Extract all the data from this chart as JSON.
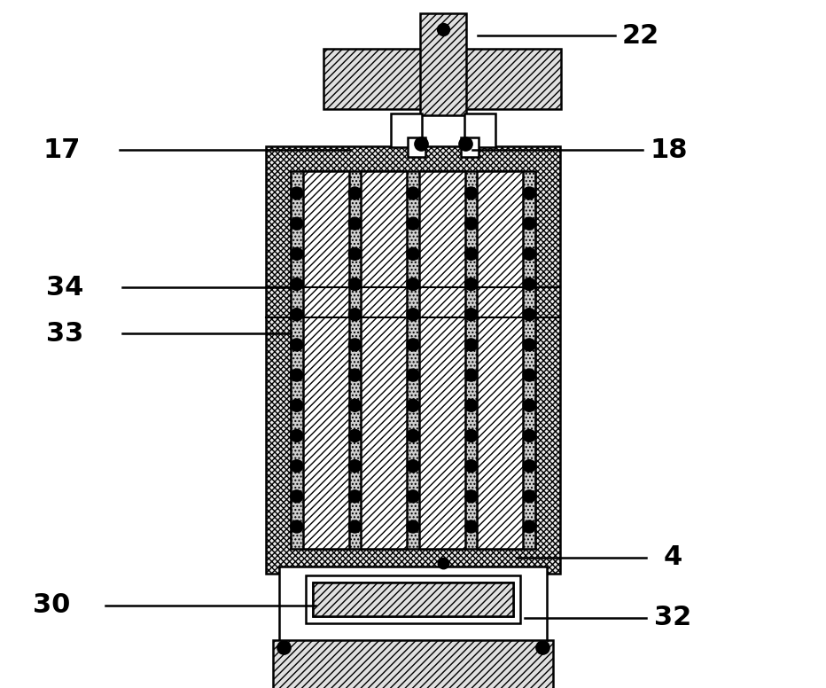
{
  "bg": "#ffffff",
  "black": "#000000",
  "annotations": {
    "22": {
      "line": [
        [
          0.578,
          0.052
        ],
        [
          0.745,
          0.052
        ]
      ],
      "label": [
        0.775,
        0.052
      ]
    },
    "17": {
      "line": [
        [
          0.425,
          0.218
        ],
        [
          0.145,
          0.218
        ]
      ],
      "label": [
        0.075,
        0.218
      ]
    },
    "18": {
      "line": [
        [
          0.572,
          0.218
        ],
        [
          0.778,
          0.218
        ]
      ],
      "label": [
        0.81,
        0.218
      ]
    },
    "34": {
      "line": [
        [
          0.352,
          0.418
        ],
        [
          0.148,
          0.418
        ]
      ],
      "label": [
        0.078,
        0.418
      ]
    },
    "33": {
      "line": [
        [
          0.352,
          0.485
        ],
        [
          0.148,
          0.485
        ]
      ],
      "label": [
        0.078,
        0.485
      ]
    },
    "4": {
      "line": [
        [
          0.625,
          0.81
        ],
        [
          0.782,
          0.81
        ]
      ],
      "label": [
        0.815,
        0.81
      ]
    },
    "30": {
      "line": [
        [
          0.382,
          0.88
        ],
        [
          0.128,
          0.88
        ]
      ],
      "label": [
        0.062,
        0.88
      ]
    },
    "32": {
      "line": [
        [
          0.635,
          0.898
        ],
        [
          0.782,
          0.898
        ]
      ],
      "label": [
        0.815,
        0.898
      ]
    }
  }
}
